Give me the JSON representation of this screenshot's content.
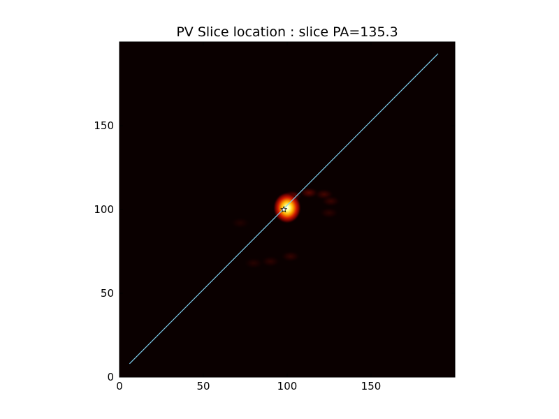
{
  "chart_data": {
    "type": "heatmap",
    "title": "PV Slice location : slice PA=135.3",
    "xlabel": "",
    "ylabel": "",
    "xlim": [
      0,
      200
    ],
    "ylim": [
      0,
      200
    ],
    "x_ticks": [
      0,
      50,
      100,
      150
    ],
    "y_ticks": [
      0,
      50,
      100,
      150
    ],
    "x_tick_labels": [
      "0",
      "50",
      "100",
      "150"
    ],
    "y_tick_labels": [
      "0",
      "50",
      "100",
      "150"
    ],
    "colormap": "hot",
    "background_color": "#0a0000",
    "grid": false,
    "emission": {
      "peak": {
        "x": 98,
        "y": 100,
        "intensity": 1.0
      },
      "extended_features": [
        {
          "x": 103,
          "y": 108,
          "intensity": 0.55
        },
        {
          "x": 113,
          "y": 110,
          "intensity": 0.35
        },
        {
          "x": 122,
          "y": 109,
          "intensity": 0.25
        },
        {
          "x": 126,
          "y": 105,
          "intensity": 0.2
        },
        {
          "x": 125,
          "y": 98,
          "intensity": 0.15
        },
        {
          "x": 102,
          "y": 72,
          "intensity": 0.18
        },
        {
          "x": 90,
          "y": 69,
          "intensity": 0.15
        },
        {
          "x": 80,
          "y": 68,
          "intensity": 0.12
        },
        {
          "x": 72,
          "y": 92,
          "intensity": 0.1
        }
      ]
    },
    "slice_line": {
      "color": "#7fd0f0",
      "start": {
        "x": 6,
        "y": 8
      },
      "end": {
        "x": 190,
        "y": 193
      },
      "position_angle": 135.3
    },
    "center_marker": {
      "shape": "star",
      "x": 98,
      "y": 100
    }
  }
}
